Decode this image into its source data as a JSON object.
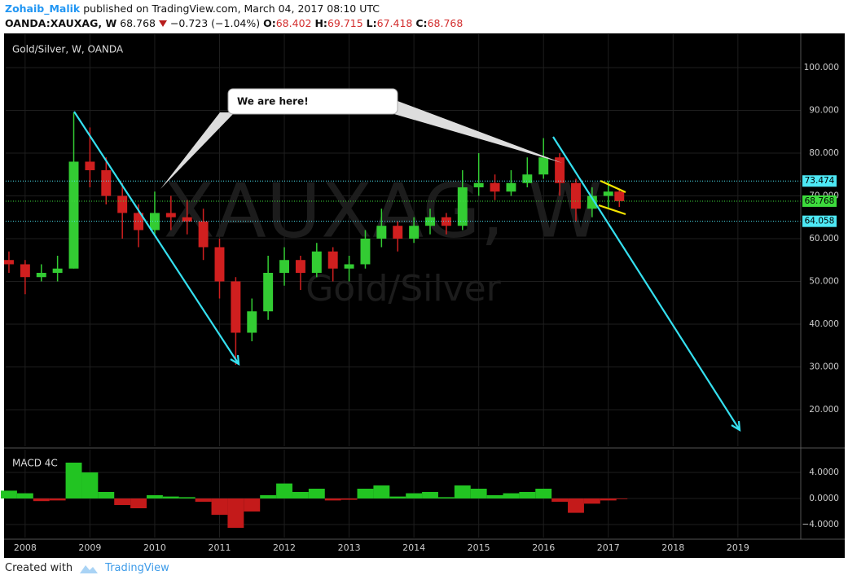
{
  "header": {
    "author": "Zohaib_Malik",
    "published": "published on TradingView.com, March 04, 2017 08:10 UTC",
    "symbol": "OANDA:XAUXAG, W",
    "last": "68.768",
    "change": "−0.723 (−1.04%)",
    "open_label": "O:",
    "open": "68.402",
    "high_label": "H:",
    "high": "69.715",
    "low_label": "L:",
    "low": "67.418",
    "close_label": "C:",
    "close": "68.768"
  },
  "chart_data": [
    {
      "type": "candlestick",
      "title": "Gold/Silver, W, OANDA",
      "watermark": "XAUXAG, W",
      "watermark_sub": "Gold/Silver",
      "annotation": "We are here!",
      "x": [
        2007.75,
        2008.0,
        2008.25,
        2008.5,
        2008.75,
        2009.0,
        2009.25,
        2009.5,
        2009.75,
        2010.0,
        2010.25,
        2010.5,
        2010.75,
        2011.0,
        2011.25,
        2011.5,
        2011.75,
        2012.0,
        2012.25,
        2012.5,
        2012.75,
        2013.0,
        2013.25,
        2013.5,
        2013.75,
        2014.0,
        2014.25,
        2014.5,
        2014.75,
        2015.0,
        2015.25,
        2015.5,
        2015.75,
        2016.0,
        2016.25,
        2016.5,
        2016.75,
        2017.0,
        2017.17
      ],
      "open": [
        55,
        54,
        51,
        52,
        53,
        78,
        76,
        70,
        66,
        62,
        66,
        65,
        64,
        58,
        50,
        38,
        43,
        52,
        55,
        52,
        57,
        53,
        54,
        60,
        63,
        60,
        63,
        65,
        63,
        72,
        73,
        71,
        73,
        75,
        79,
        73,
        67,
        70,
        71
      ],
      "high": [
        57,
        55,
        54,
        56,
        89.5,
        86,
        79,
        73,
        68,
        71,
        70,
        69,
        67,
        60,
        51,
        46,
        56,
        58,
        56,
        59,
        58,
        56,
        62,
        67,
        64,
        65,
        67,
        66,
        76,
        80,
        75,
        76,
        79,
        83.5,
        80,
        74,
        72,
        73.5,
        71.5
      ],
      "low": [
        52,
        47,
        50,
        50,
        53,
        72,
        68,
        60,
        58,
        61,
        62,
        61,
        55,
        46,
        30.5,
        36,
        41,
        49,
        48,
        51,
        50,
        50,
        53,
        58,
        57,
        59,
        61,
        61,
        62,
        70,
        69,
        70,
        72,
        74,
        70,
        64,
        65,
        67,
        67.4
      ],
      "close": [
        54,
        51,
        52,
        53,
        78,
        76,
        70,
        66,
        62,
        66,
        65,
        64,
        58,
        50,
        38,
        43,
        52,
        55,
        52,
        57,
        53,
        54,
        60,
        63,
        60,
        63,
        65,
        63,
        72,
        73,
        71,
        73,
        75,
        79,
        73,
        67,
        70,
        71,
        68.768
      ],
      "up_color": "#33cc33",
      "down_color": "#d01f1f",
      "xlim": [
        2007.7,
        2019.97
      ],
      "xticks": [
        2008,
        2009,
        2010,
        2011,
        2012,
        2013,
        2014,
        2015,
        2016,
        2017,
        2018,
        2019
      ],
      "ylim": [
        11.43,
        107.8
      ],
      "yticks": [
        {
          "value": 20,
          "label": "20.000"
        },
        {
          "value": 30,
          "label": "30.000"
        },
        {
          "value": 40,
          "label": "40.000"
        },
        {
          "value": 50,
          "label": "50.000"
        },
        {
          "value": 60,
          "label": "60.000"
        },
        {
          "value": 70,
          "label": "70.000"
        },
        {
          "value": 80,
          "label": "80.000"
        },
        {
          "value": 90,
          "label": "90.000"
        },
        {
          "value": 100,
          "label": "100.000"
        }
      ],
      "price_lines": [
        {
          "value": 73.474,
          "color": "#4de8f5"
        },
        {
          "value": 68.768,
          "color": "#3ddc3d"
        },
        {
          "value": 64.058,
          "color": "#4de8f5"
        }
      ],
      "grid": true
    },
    {
      "type": "bar",
      "title": "MACD 4C",
      "x": [
        2007.75,
        2008.0,
        2008.25,
        2008.5,
        2008.75,
        2009.0,
        2009.25,
        2009.5,
        2009.75,
        2010.0,
        2010.25,
        2010.5,
        2010.75,
        2011.0,
        2011.25,
        2011.5,
        2011.75,
        2012.0,
        2012.25,
        2012.5,
        2012.75,
        2013.0,
        2013.25,
        2013.5,
        2013.75,
        2014.0,
        2014.25,
        2014.5,
        2014.75,
        2015.0,
        2015.25,
        2015.5,
        2015.75,
        2016.0,
        2016.25,
        2016.5,
        2016.75,
        2017.0,
        2017.17
      ],
      "values": [
        1.2,
        0.8,
        -0.4,
        -0.3,
        5.5,
        4,
        1,
        -1,
        -1.5,
        0.5,
        0.3,
        0.2,
        -0.5,
        -2.5,
        -4.5,
        -2,
        0.5,
        2.3,
        1,
        1.5,
        -0.3,
        -0.2,
        1.5,
        2,
        0.3,
        0.8,
        1,
        0.2,
        2,
        1.5,
        0.5,
        0.8,
        1,
        1.5,
        -0.5,
        -2.2,
        -0.8,
        -0.3,
        -0.1
      ],
      "pos_color": "#22c422",
      "neg_color": "#c41a1a",
      "ylim": [
        -6,
        7.5
      ],
      "yticks": [
        {
          "value": -4,
          "label": "−4.0000"
        },
        {
          "value": 0,
          "label": "0.0000"
        },
        {
          "value": 4,
          "label": "4.0000"
        }
      ]
    }
  ],
  "footer": {
    "created": "Created with",
    "brand": "TradingView"
  }
}
